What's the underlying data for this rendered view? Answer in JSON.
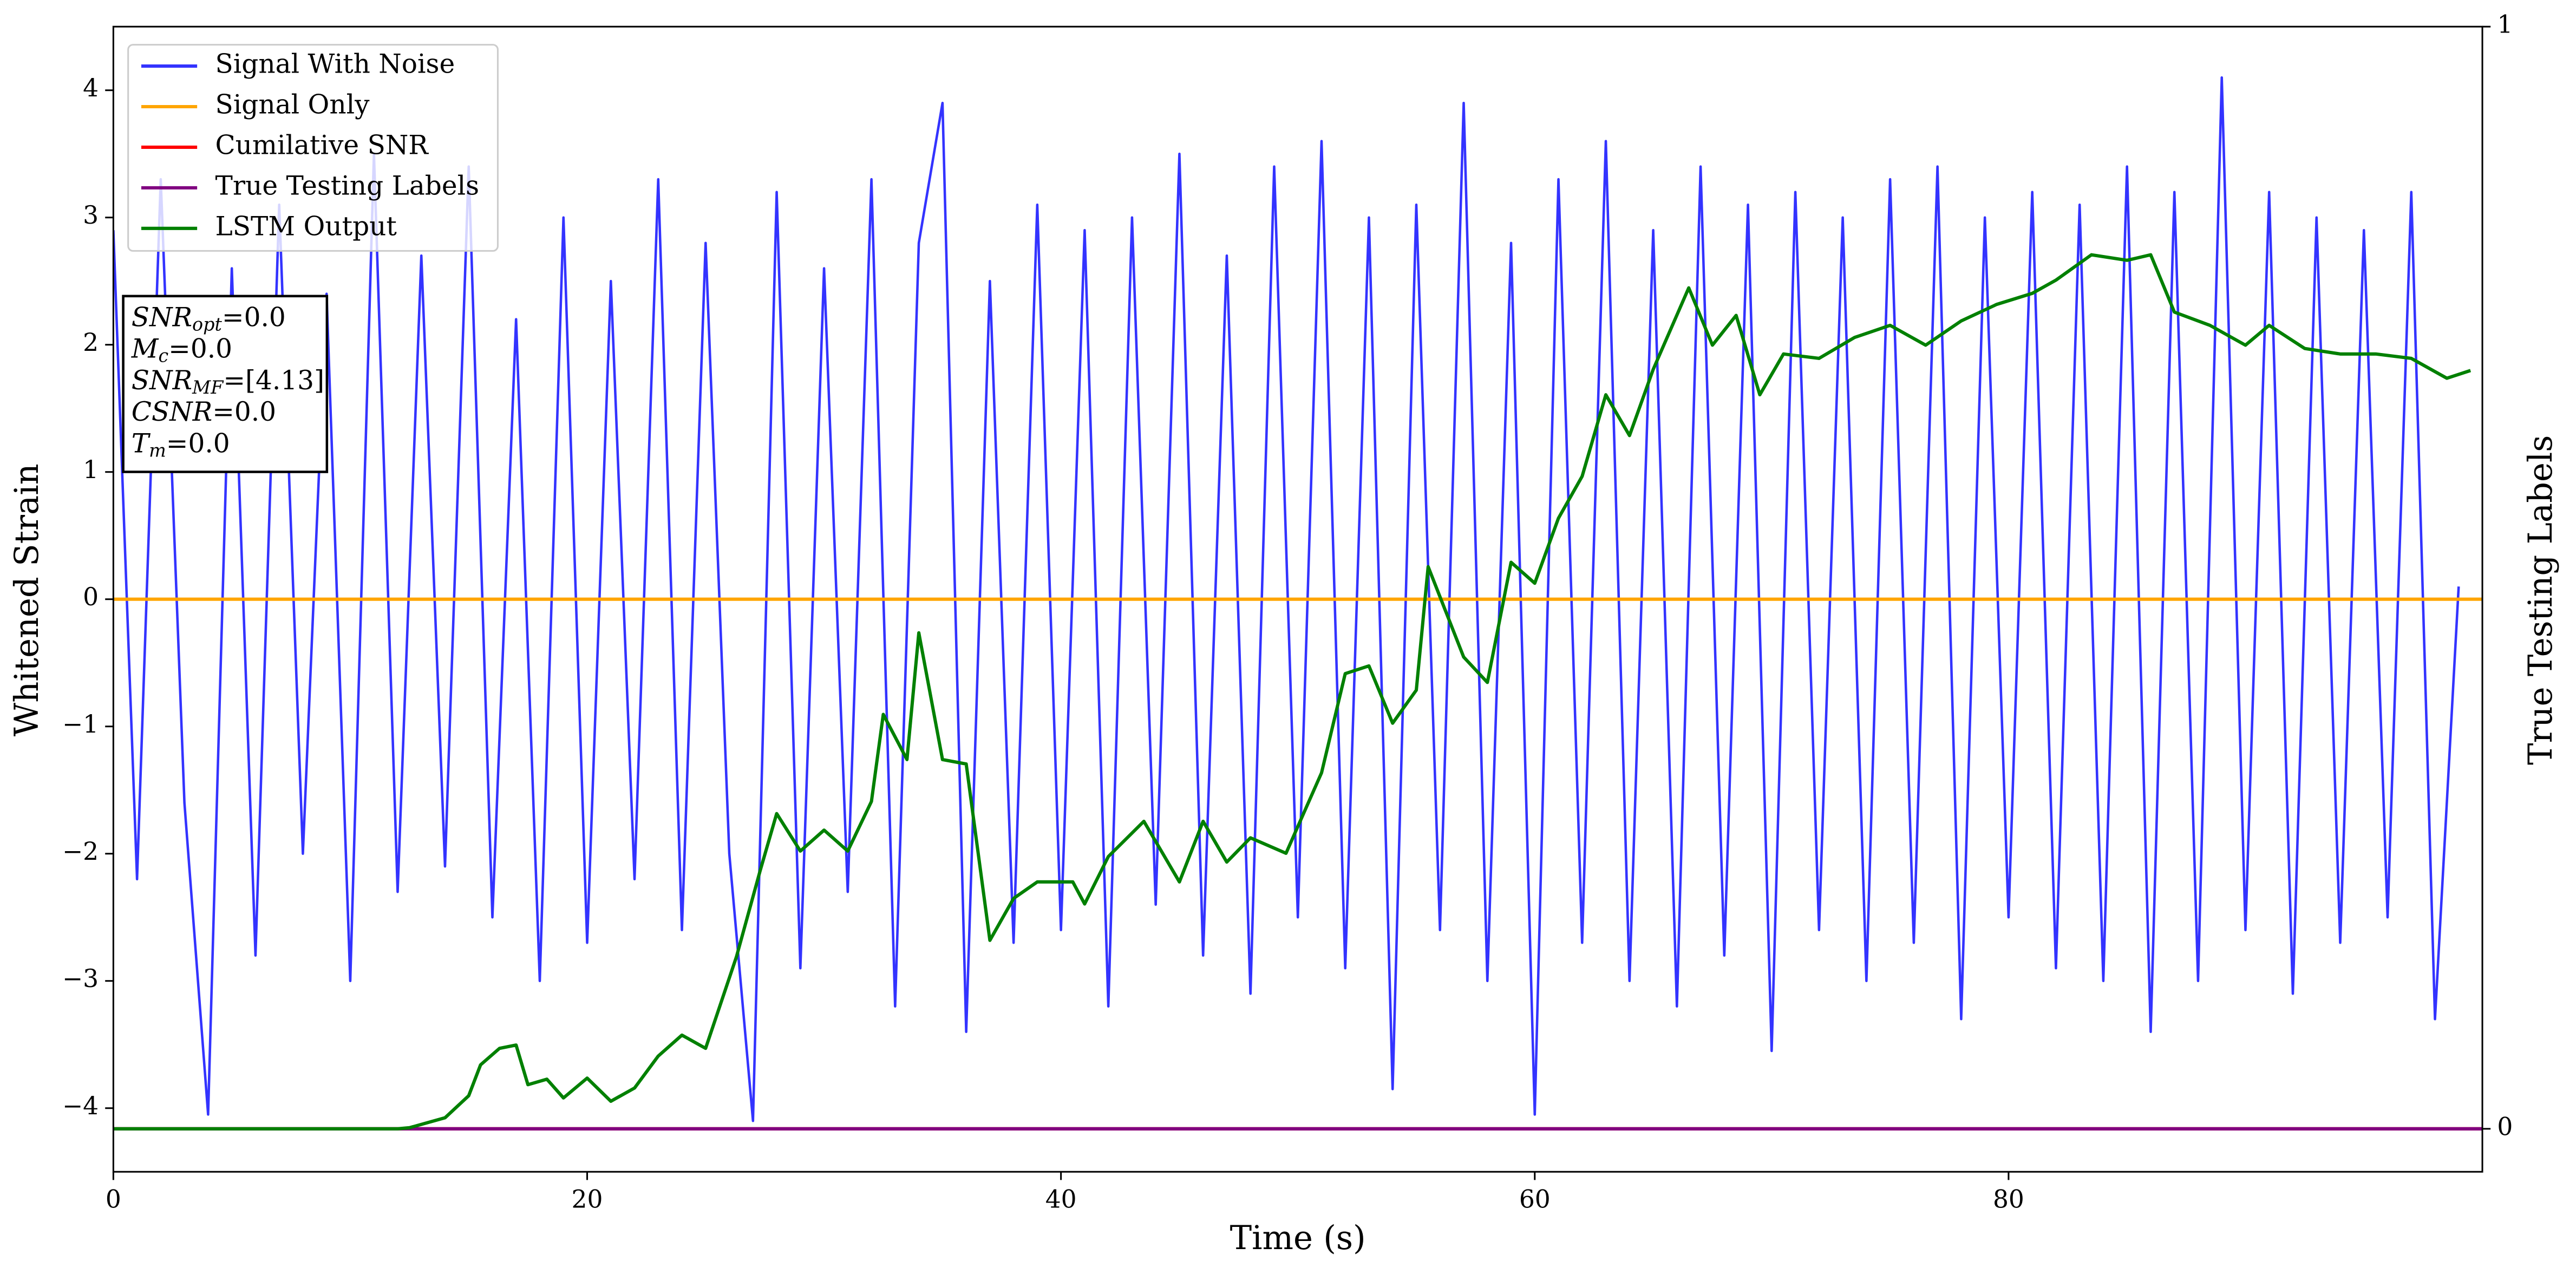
{
  "chart_data": {
    "type": "line",
    "xlabel": "Time (s)",
    "ylabel": "Whitened Strain",
    "y2label": "True Testing Labels",
    "xlim": [
      0,
      100
    ],
    "xticks": [
      0,
      20,
      40,
      60,
      80
    ],
    "ylim": [
      -4.5,
      4.5
    ],
    "yticks": [
      {
        "value": -4,
        "label": "−4"
      },
      {
        "value": -3,
        "label": "−3"
      },
      {
        "value": -2,
        "label": "−2"
      },
      {
        "value": -1,
        "label": "−1"
      },
      0,
      1,
      2,
      3,
      4
    ],
    "y2lim": [
      -0.039,
      1
    ],
    "y2ticks": [
      0,
      1
    ],
    "legend": "upper left",
    "annotations": [
      {
        "symbol": "SNR",
        "sub": "opt",
        "text": "=0.0"
      },
      {
        "symbol": "M",
        "sub": "c",
        "text": "=0.0"
      },
      {
        "symbol": "SNR",
        "sub": "MF",
        "text": "=[4.13]"
      },
      {
        "symbol": "CSNR",
        "sub": "",
        "text": "=0.0"
      },
      {
        "symbol": "T",
        "sub": "m",
        "text": "=0.0"
      }
    ],
    "series": [
      {
        "name": "Signal With Noise",
        "color": "#3333ff",
        "axis": "y",
        "x": [
          0,
          1,
          2,
          3,
          4,
          5,
          6,
          7,
          8,
          9,
          10,
          11,
          12,
          13,
          14,
          15,
          16,
          17,
          18,
          19,
          20,
          21,
          22,
          23,
          24,
          25,
          26,
          27,
          28,
          29,
          30,
          31,
          32,
          33,
          34,
          35,
          36,
          37,
          38,
          39,
          40,
          41,
          42,
          43,
          44,
          45,
          46,
          47,
          48,
          49,
          50,
          51,
          52,
          53,
          54,
          55,
          56,
          57,
          58,
          59,
          60,
          61,
          62,
          63,
          64,
          65,
          66,
          67,
          68,
          69,
          70,
          71,
          72,
          73,
          74,
          75,
          76,
          77,
          78,
          79,
          80,
          81,
          82,
          83,
          84,
          85,
          86,
          87,
          88,
          89,
          90,
          91,
          92,
          93,
          94,
          95,
          96,
          97,
          98,
          99
        ],
        "values": [
          2.9,
          -2.2,
          3.3,
          -1.6,
          -4.05,
          2.6,
          -2.8,
          3.1,
          -2.0,
          2.4,
          -3.0,
          3.5,
          -2.3,
          2.7,
          -2.1,
          3.4,
          -2.5,
          2.2,
          -3.0,
          3.0,
          -2.7,
          2.5,
          -2.2,
          3.3,
          -2.6,
          2.8,
          -2.0,
          -4.1,
          3.2,
          -2.9,
          2.6,
          -2.3,
          3.3,
          -3.2,
          2.8,
          3.9,
          -3.4,
          2.5,
          -2.7,
          3.1,
          -2.6,
          2.9,
          -3.2,
          3.0,
          -2.4,
          3.5,
          -2.8,
          2.7,
          -3.1,
          3.4,
          -2.5,
          3.6,
          -2.9,
          3.0,
          -3.85,
          3.1,
          -2.6,
          3.9,
          -3.0,
          2.8,
          -4.05,
          3.3,
          -2.7,
          3.6,
          -3.0,
          2.9,
          -3.2,
          3.4,
          -2.8,
          3.1,
          -3.55,
          3.2,
          -2.6,
          3.0,
          -3.0,
          3.3,
          -2.7,
          3.4,
          -3.3,
          3.0,
          -2.5,
          3.2,
          -2.9,
          3.1,
          -3.0,
          3.4,
          -3.4,
          3.2,
          -3.0,
          4.1,
          -2.6,
          3.2,
          -3.1,
          3.0,
          -2.7,
          2.9,
          -2.5,
          3.2,
          -3.3,
          0.1
        ]
      },
      {
        "name": "Signal Only",
        "color": "#ffa500",
        "axis": "y",
        "x": [
          0,
          100
        ],
        "values": [
          0,
          0
        ]
      },
      {
        "name": "Cumilative SNR",
        "color": "#ff0000",
        "axis": "y2",
        "x": [
          0,
          100
        ],
        "values": [
          0,
          0
        ]
      },
      {
        "name": "True Testing Labels",
        "color": "#800080",
        "axis": "y2",
        "x": [
          0,
          100
        ],
        "values": [
          0,
          0
        ]
      },
      {
        "name": "LSTM Output",
        "color": "#008000",
        "axis": "y2",
        "x": [
          0,
          12,
          12.5,
          14,
          15,
          15.5,
          16.3,
          17,
          17.5,
          18.3,
          19,
          20,
          21,
          22,
          23,
          24,
          25,
          26.3,
          27.3,
          28,
          29,
          30,
          31,
          32,
          32.5,
          33.5,
          34,
          35,
          36,
          37,
          38,
          39,
          40.5,
          41,
          42,
          43.5,
          45,
          46,
          47,
          48,
          49.5,
          51,
          52,
          53,
          54,
          55,
          55.5,
          57,
          58,
          59,
          60,
          61,
          62,
          63,
          64,
          65,
          66.5,
          67.5,
          68.5,
          69.5,
          70.5,
          72,
          73.5,
          75,
          76.5,
          78,
          79.5,
          81,
          82,
          83.5,
          85,
          86,
          87,
          88.5,
          90,
          91,
          92.5,
          94,
          95.5,
          97,
          98.5,
          99.5
        ],
        "values": [
          0,
          0,
          0.001,
          0.01,
          0.03,
          0.058,
          0.073,
          0.076,
          0.04,
          0.045,
          0.028,
          0.046,
          0.025,
          0.037,
          0.066,
          0.085,
          0.073,
          0.156,
          0.234,
          0.286,
          0.252,
          0.271,
          0.252,
          0.297,
          0.376,
          0.335,
          0.45,
          0.335,
          0.331,
          0.171,
          0.209,
          0.224,
          0.224,
          0.204,
          0.247,
          0.279,
          0.224,
          0.279,
          0.242,
          0.264,
          0.25,
          0.323,
          0.413,
          0.42,
          0.368,
          0.398,
          0.51,
          0.428,
          0.405,
          0.514,
          0.495,
          0.554,
          0.592,
          0.666,
          0.629,
          0.689,
          0.763,
          0.711,
          0.738,
          0.666,
          0.703,
          0.699,
          0.718,
          0.729,
          0.711,
          0.733,
          0.748,
          0.758,
          0.77,
          0.793,
          0.788,
          0.793,
          0.741,
          0.729,
          0.711,
          0.729,
          0.708,
          0.703,
          0.703,
          0.699,
          0.681,
          0.688
        ]
      }
    ]
  }
}
